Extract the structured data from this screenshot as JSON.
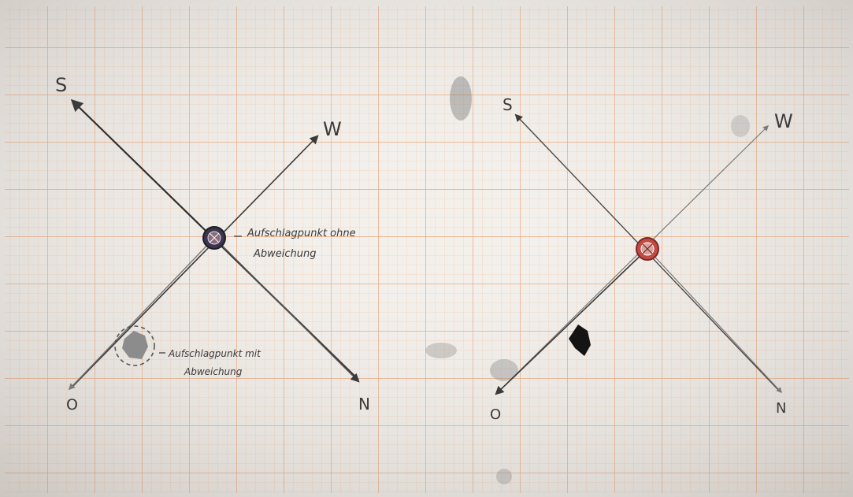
{
  "diagrams": [
    {
      "label_s": "S",
      "label_w": "W",
      "label_n": "N",
      "label_o": "O",
      "annotation_center_line1": "Aufschlagpunkt ohne",
      "annotation_center_line2": "Abweichung",
      "annotation_offset_line1": "Aufschlagpunkt mit",
      "annotation_offset_line2": "Abweichung"
    },
    {
      "label_s": "S",
      "label_w": "W",
      "label_n": "N",
      "label_o": "O"
    }
  ],
  "colors": {
    "paper": "#f2efec",
    "grid_fine": "#f3c9a8",
    "grid_major": "#ec9d6c",
    "ink": "#2f2f2f",
    "ink_light": "#6b6b6b",
    "red_ring": "#b8453f"
  }
}
